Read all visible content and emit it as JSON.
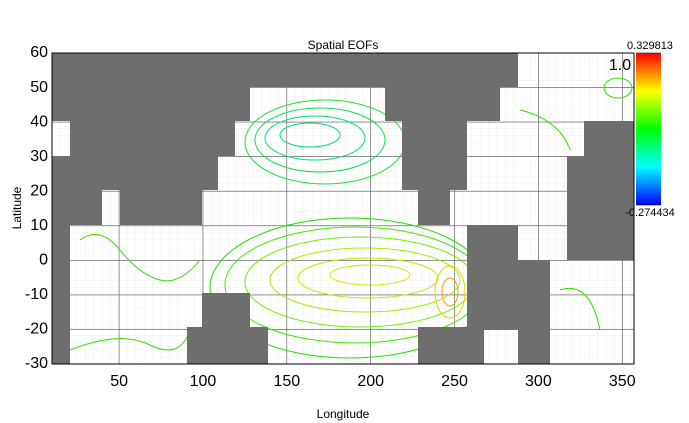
{
  "chart_data": {
    "type": "contour",
    "title": "Spatial EOFs",
    "x_label": "Longitude",
    "y_label": "Latitude",
    "xlim": [
      10,
      357
    ],
    "ylim": [
      -30,
      60
    ],
    "xticks": [
      50,
      100,
      150,
      200,
      250,
      300,
      350
    ],
    "yticks": [
      -30,
      -20,
      -10,
      0,
      10,
      20,
      30,
      40,
      50,
      60
    ],
    "grid": true,
    "annotation": "1.0",
    "colorbar": {
      "lim": [
        -0.274434,
        0.329813
      ],
      "ticks": [
        -0.274434,
        0.329813
      ],
      "colormap": [
        "#ff0000",
        "#ffff00",
        "#00ff00",
        "#00ffff",
        "#0000ff"
      ]
    }
  }
}
